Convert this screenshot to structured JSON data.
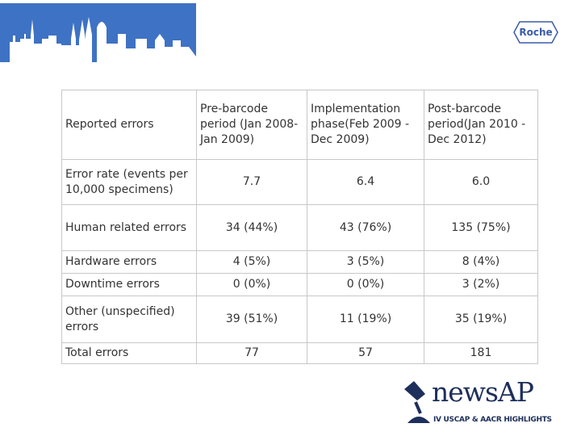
{
  "logos": {
    "company": "Roche",
    "brand": "newsAP",
    "brand_tagline": "IV USCAP & AACR HIGHLIGHTS"
  },
  "table": {
    "header": [
      "Reported errors",
      "Pre-barcode period (Jan 2008-Jan 2009)",
      "Implementation phase(Feb 2009 -Dec 2009)",
      "Post-barcode period(Jan 2010 -Dec 2012)"
    ],
    "rows": [
      [
        "Error rate (events per 10,000 specimens)",
        "7.7",
        "6.4",
        "6.0"
      ],
      [
        "Human related errors",
        "34 (44%)",
        "43 (76%)",
        "135 (75%)"
      ],
      [
        "Hardware errors",
        "4 (5%)",
        "3 (5%)",
        "8 (4%)"
      ],
      [
        "Downtime errors",
        "0 (0%)",
        "0 (0%)",
        "3 (2%)"
      ],
      [
        "Other (unspecified) errors",
        "39 (51%)",
        "11 (19%)",
        "35 (19%)"
      ],
      [
        "Total errors",
        "77",
        "57",
        "181"
      ]
    ]
  }
}
